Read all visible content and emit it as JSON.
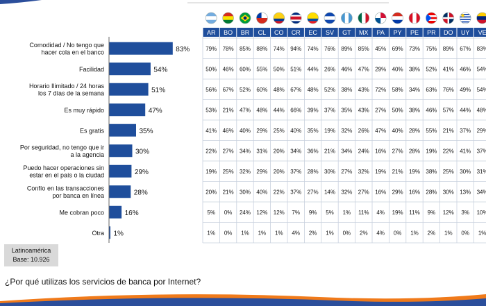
{
  "chart_data": {
    "type": "bar",
    "orientation": "horizontal",
    "categories": [
      [
        "Comodidad / No tengo que",
        "hacer cola en el banco"
      ],
      [
        "Facilidad"
      ],
      [
        "Horario Ilimitado / 24 horas",
        "los 7 días de la semana"
      ],
      [
        "Es muy rápido"
      ],
      [
        "Es gratis"
      ],
      [
        "Por seguridad, no tengo que ir",
        "a la agencia"
      ],
      [
        "Puedo hacer operaciones sin",
        "estar en el país o la ciudad"
      ],
      [
        "Confío en las transacciones",
        "por banca en línea"
      ],
      [
        "Me cobran poco"
      ],
      [
        "Otra"
      ]
    ],
    "values": [
      83,
      54,
      51,
      47,
      35,
      30,
      29,
      28,
      16,
      1
    ],
    "value_labels": [
      "83%",
      "54%",
      "51%",
      "47%",
      "35%",
      "30%",
      "29%",
      "28%",
      "16%",
      "1%"
    ],
    "bar_color": "#1f4e9c",
    "xlim": [
      0,
      100
    ],
    "countries": [
      "AR",
      "BO",
      "BR",
      "CL",
      "CO",
      "CR",
      "EC",
      "SV",
      "GT",
      "MX",
      "PA",
      "PY",
      "PE",
      "PR",
      "DO",
      "UY",
      "VE"
    ],
    "table": [
      [
        "79%",
        "78%",
        "85%",
        "88%",
        "74%",
        "94%",
        "74%",
        "76%",
        "89%",
        "85%",
        "45%",
        "69%",
        "73%",
        "75%",
        "89%",
        "67%",
        "83%"
      ],
      [
        "50%",
        "46%",
        "60%",
        "55%",
        "50%",
        "51%",
        "44%",
        "26%",
        "46%",
        "47%",
        "29%",
        "40%",
        "38%",
        "52%",
        "41%",
        "46%",
        "54%"
      ],
      [
        "56%",
        "67%",
        "52%",
        "60%",
        "48%",
        "67%",
        "48%",
        "52%",
        "38%",
        "43%",
        "72%",
        "58%",
        "34%",
        "63%",
        "76%",
        "49%",
        "54%"
      ],
      [
        "53%",
        "21%",
        "47%",
        "48%",
        "44%",
        "66%",
        "39%",
        "37%",
        "35%",
        "43%",
        "27%",
        "50%",
        "38%",
        "46%",
        "57%",
        "44%",
        "48%"
      ],
      [
        "41%",
        "46%",
        "40%",
        "29%",
        "25%",
        "40%",
        "35%",
        "19%",
        "32%",
        "26%",
        "47%",
        "40%",
        "28%",
        "55%",
        "21%",
        "37%",
        "29%"
      ],
      [
        "22%",
        "27%",
        "34%",
        "31%",
        "20%",
        "34%",
        "36%",
        "21%",
        "34%",
        "24%",
        "16%",
        "27%",
        "28%",
        "19%",
        "22%",
        "41%",
        "37%"
      ],
      [
        "19%",
        "25%",
        "32%",
        "29%",
        "20%",
        "37%",
        "28%",
        "30%",
        "27%",
        "32%",
        "19%",
        "21%",
        "19%",
        "38%",
        "25%",
        "30%",
        "31%"
      ],
      [
        "20%",
        "21%",
        "30%",
        "40%",
        "22%",
        "37%",
        "27%",
        "14%",
        "32%",
        "27%",
        "16%",
        "29%",
        "16%",
        "28%",
        "30%",
        "13%",
        "34%"
      ],
      [
        "5%",
        "0%",
        "24%",
        "12%",
        "12%",
        "7%",
        "9%",
        "5%",
        "1%",
        "11%",
        "4%",
        "19%",
        "11%",
        "9%",
        "12%",
        "3%",
        "10%"
      ],
      [
        "1%",
        "0%",
        "1%",
        "1%",
        "1%",
        "4%",
        "2%",
        "1%",
        "0%",
        "2%",
        "4%",
        "0%",
        "1%",
        "2%",
        "1%",
        "0%",
        "1%"
      ]
    ],
    "header_color": "#1f4e9c",
    "flag_icons": [
      "argentina-flag-icon",
      "bolivia-flag-icon",
      "brazil-flag-icon",
      "chile-flag-icon",
      "colombia-flag-icon",
      "costa-rica-flag-icon",
      "ecuador-flag-icon",
      "el-salvador-flag-icon",
      "guatemala-flag-icon",
      "mexico-flag-icon",
      "panama-flag-icon",
      "paraguay-flag-icon",
      "peru-flag-icon",
      "puerto-rico-flag-icon",
      "dominican-republic-flag-icon",
      "uruguay-flag-icon",
      "venezuela-flag-icon"
    ]
  },
  "base_box": {
    "line1": "Latinoamérica",
    "line2": "Base: 10.926"
  },
  "question": "¿Por qué utilizas los servicios de banca por Internet?"
}
